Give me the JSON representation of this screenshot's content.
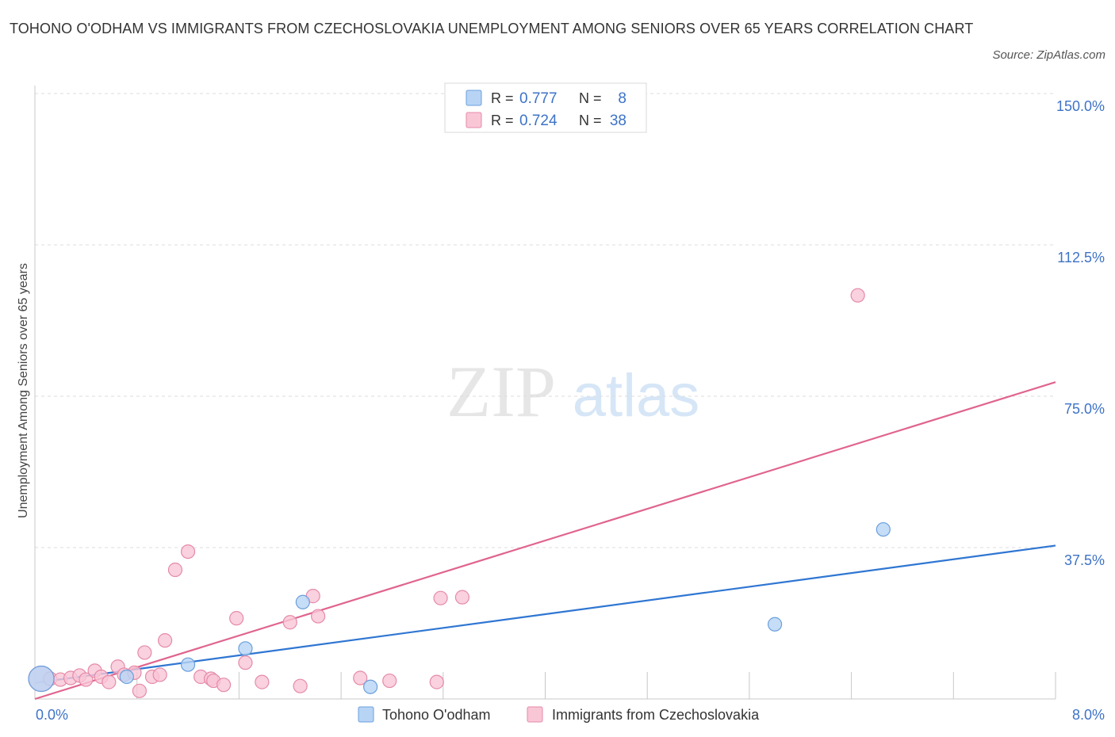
{
  "title": "TOHONO O'ODHAM VS IMMIGRANTS FROM CZECHOSLOVAKIA UNEMPLOYMENT AMONG SENIORS OVER 65 YEARS CORRELATION CHART",
  "source": "Source: ZipAtlas.com",
  "watermark": {
    "zip": "ZIP",
    "atlas": "atlas"
  },
  "colors": {
    "blue_fill": "#b8d4f5",
    "blue_stroke": "#6a9fdc",
    "blue_line": "#2f76d2",
    "pink_fill": "#f9c6d6",
    "pink_stroke": "#e58aa8",
    "pink_line": "#e0648e",
    "value_text": "#3d73c7",
    "grid": "#dcdcdc"
  },
  "legend_stats": [
    {
      "r_label": "R = ",
      "r_value": "0.777",
      "n_label": "N = ",
      "n_value": "8"
    },
    {
      "r_label": "R = ",
      "r_value": "0.724",
      "n_label": "N = ",
      "n_value": "38"
    }
  ],
  "chart_data": {
    "type": "scatter",
    "title": "TOHONO O'ODHAM VS IMMIGRANTS FROM CZECHOSLOVAKIA UNEMPLOYMENT AMONG SENIORS OVER 65 YEARS CORRELATION CHART",
    "xlabel": "",
    "ylabel": "Unemployment Among Seniors over 65 years",
    "xlim": [
      0,
      8
    ],
    "ylim": [
      0,
      150
    ],
    "x_tick_labels": [
      {
        "value": 0,
        "label": "0.0%"
      },
      {
        "value": 8,
        "label": "8.0%"
      }
    ],
    "y_tick_labels": [
      {
        "value": 150,
        "label": "150.0%"
      },
      {
        "value": 112.5,
        "label": "112.5%"
      },
      {
        "value": 75,
        "label": "75.0%"
      },
      {
        "value": 37.5,
        "label": "37.5%"
      }
    ],
    "grid": true,
    "legend_position": "bottom",
    "series": [
      {
        "name": "Tohono O'odham",
        "color": "#b8d4f5",
        "r": 0.777,
        "n": 8,
        "points": [
          {
            "x": 0.05,
            "y": 5.0,
            "size": "large"
          },
          {
            "x": 0.72,
            "y": 5.5
          },
          {
            "x": 1.2,
            "y": 8.5
          },
          {
            "x": 1.65,
            "y": 12.5
          },
          {
            "x": 2.1,
            "y": 24.0
          },
          {
            "x": 2.63,
            "y": 3.0
          },
          {
            "x": 5.8,
            "y": 18.5
          },
          {
            "x": 6.65,
            "y": 42.0
          }
        ],
        "trend": {
          "x": [
            0,
            8
          ],
          "y": [
            4.0,
            38.0
          ]
        }
      },
      {
        "name": "Immigrants from Czechoslovakia",
        "color": "#f9c6d6",
        "r": 0.724,
        "n": 38,
        "points": [
          {
            "x": 0.05,
            "y": 5.0,
            "size": "large"
          },
          {
            "x": 0.12,
            "y": 5.0
          },
          {
            "x": 0.2,
            "y": 4.8
          },
          {
            "x": 0.28,
            "y": 5.2
          },
          {
            "x": 0.35,
            "y": 5.8
          },
          {
            "x": 0.4,
            "y": 4.8
          },
          {
            "x": 0.47,
            "y": 7.0
          },
          {
            "x": 0.52,
            "y": 5.5
          },
          {
            "x": 0.58,
            "y": 4.2
          },
          {
            "x": 0.65,
            "y": 8.0
          },
          {
            "x": 0.7,
            "y": 6.0
          },
          {
            "x": 0.78,
            "y": 6.5
          },
          {
            "x": 0.82,
            "y": 2.0
          },
          {
            "x": 0.86,
            "y": 11.5
          },
          {
            "x": 0.92,
            "y": 5.5
          },
          {
            "x": 0.98,
            "y": 6.0
          },
          {
            "x": 1.02,
            "y": 14.5
          },
          {
            "x": 1.1,
            "y": 32.0
          },
          {
            "x": 1.2,
            "y": 36.5
          },
          {
            "x": 1.3,
            "y": 5.5
          },
          {
            "x": 1.38,
            "y": 5.0
          },
          {
            "x": 1.4,
            "y": 4.5
          },
          {
            "x": 1.48,
            "y": 3.5
          },
          {
            "x": 1.58,
            "y": 20.0
          },
          {
            "x": 1.65,
            "y": 9.0
          },
          {
            "x": 1.78,
            "y": 4.2
          },
          {
            "x": 2.0,
            "y": 19.0
          },
          {
            "x": 2.08,
            "y": 3.2
          },
          {
            "x": 2.18,
            "y": 25.5
          },
          {
            "x": 2.22,
            "y": 20.5
          },
          {
            "x": 2.55,
            "y": 5.2
          },
          {
            "x": 2.78,
            "y": 4.5
          },
          {
            "x": 3.15,
            "y": 4.2
          },
          {
            "x": 3.18,
            "y": 25.0
          },
          {
            "x": 3.35,
            "y": 25.2
          },
          {
            "x": 6.45,
            "y": 100.0
          }
        ],
        "trend": {
          "x": [
            0,
            8
          ],
          "y": [
            0,
            78.5
          ]
        }
      }
    ]
  }
}
